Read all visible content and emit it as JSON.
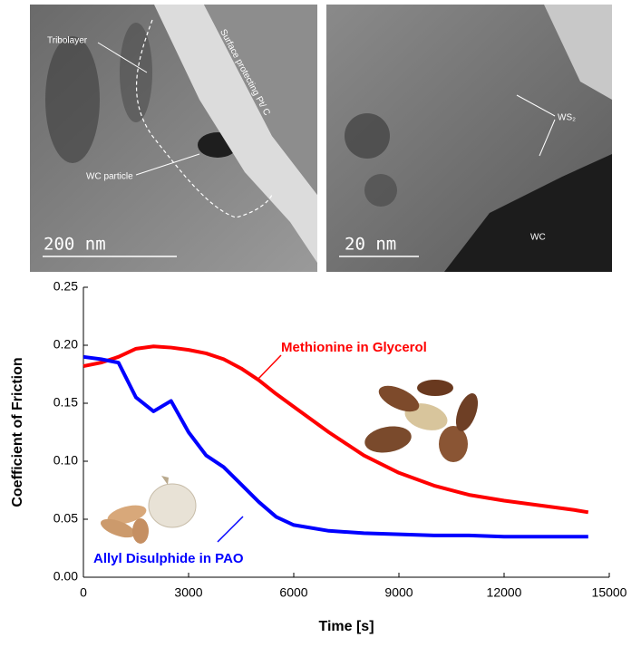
{
  "micrographs": [
    {
      "labels": [
        "Tribolayer",
        "Surface protecting Pt/ C",
        "WC particle"
      ],
      "scale": "200 nm"
    },
    {
      "labels": [
        "WS₂",
        "WC"
      ],
      "scale": "20 nm"
    }
  ],
  "chart_data": {
    "type": "line",
    "xlabel": "Time [s]",
    "ylabel": "Coefficient of Friction",
    "x": [
      0,
      500,
      1000,
      1500,
      2000,
      2500,
      3000,
      3500,
      4000,
      4500,
      5000,
      5500,
      6000,
      7000,
      8000,
      9000,
      10000,
      11000,
      12000,
      13000,
      14000,
      14400
    ],
    "series": [
      {
        "name": "Methionine in Glycerol",
        "color": "#ff0000",
        "values": [
          0.182,
          0.185,
          0.19,
          0.197,
          0.199,
          0.198,
          0.196,
          0.193,
          0.188,
          0.18,
          0.17,
          0.158,
          0.147,
          0.125,
          0.105,
          0.09,
          0.079,
          0.071,
          0.066,
          0.062,
          0.058,
          0.056
        ]
      },
      {
        "name": "Allyl Disulphide in PAO",
        "color": "#0000ff",
        "values": [
          0.19,
          0.188,
          0.185,
          0.155,
          0.143,
          0.152,
          0.125,
          0.105,
          0.095,
          0.08,
          0.065,
          0.052,
          0.045,
          0.04,
          0.038,
          0.037,
          0.036,
          0.036,
          0.035,
          0.035,
          0.035,
          0.035
        ]
      }
    ],
    "xlim": [
      0,
      15000
    ],
    "xticks": [
      0,
      3000,
      6000,
      9000,
      12000,
      15000
    ],
    "ylim": [
      0,
      0.25
    ],
    "yticks": [
      {
        "value": 0,
        "label": "0.00"
      },
      {
        "value": 0.05,
        "label": "0.05"
      },
      {
        "value": 0.1,
        "label": "0.10"
      },
      {
        "value": 0.15,
        "label": "0.15"
      },
      {
        "value": 0.2,
        "label": "0.20"
      },
      {
        "value": 0.25,
        "label": "0.25"
      }
    ]
  }
}
